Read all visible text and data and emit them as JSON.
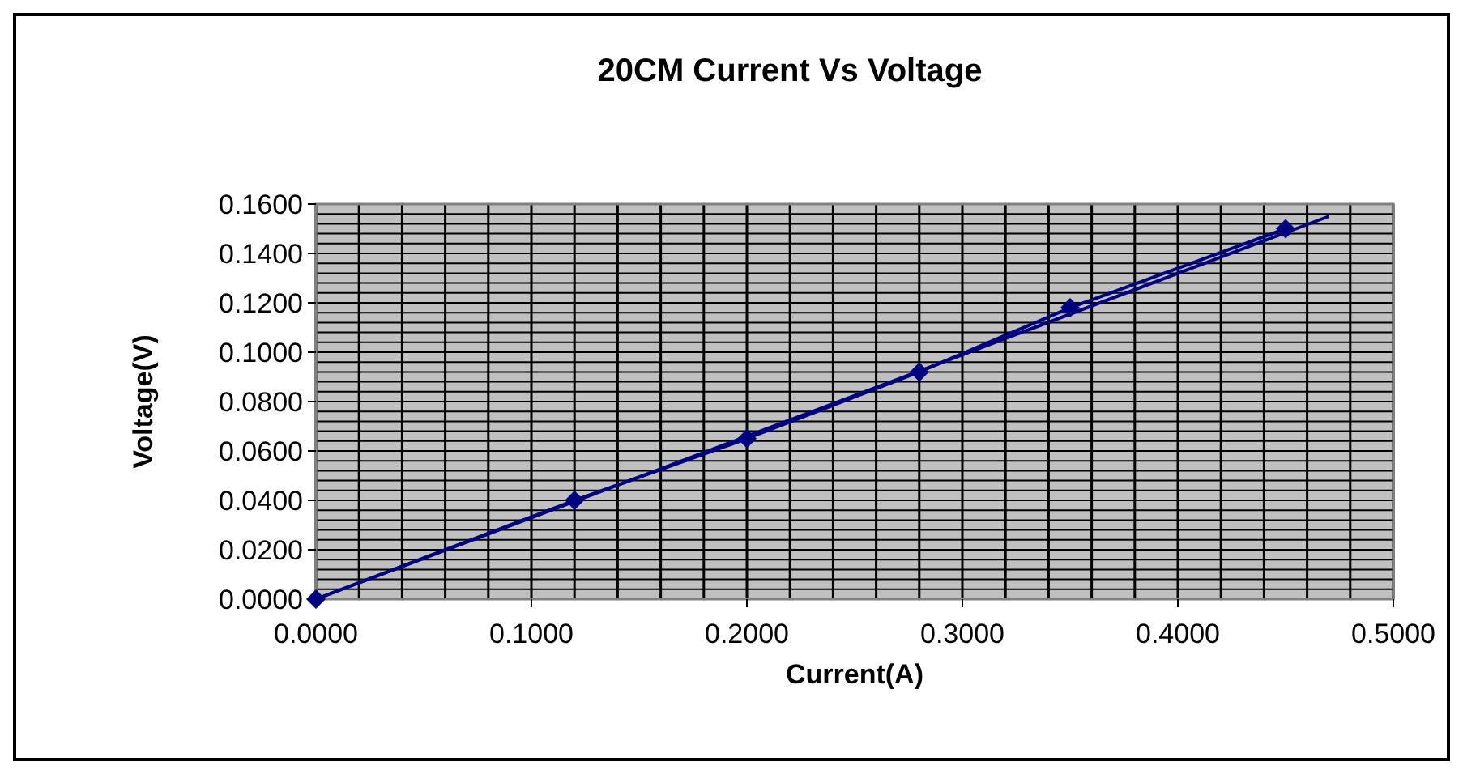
{
  "chart_data": {
    "type": "line",
    "title": "20CM Current Vs Voltage",
    "xlabel": "Current(A)",
    "ylabel": "Voltage(V)",
    "marker": "diamond",
    "grid": true,
    "xlim": [
      0,
      0.5
    ],
    "ylim": [
      0,
      0.16
    ],
    "xticks": [
      {
        "value": 0,
        "label": "0.0000"
      },
      {
        "value": 0.02,
        "label": null
      },
      {
        "value": 0.04,
        "label": null
      },
      {
        "value": 0.06,
        "label": null
      },
      {
        "value": 0.08,
        "label": null
      },
      {
        "value": 0.1,
        "label": "0.1000"
      },
      {
        "value": 0.12,
        "label": null
      },
      {
        "value": 0.14,
        "label": null
      },
      {
        "value": 0.16,
        "label": null
      },
      {
        "value": 0.18,
        "label": null
      },
      {
        "value": 0.2,
        "label": "0.2000"
      },
      {
        "value": 0.22,
        "label": null
      },
      {
        "value": 0.24,
        "label": null
      },
      {
        "value": 0.26,
        "label": null
      },
      {
        "value": 0.28,
        "label": null
      },
      {
        "value": 0.3,
        "label": "0.3000"
      },
      {
        "value": 0.32,
        "label": null
      },
      {
        "value": 0.34,
        "label": null
      },
      {
        "value": 0.36,
        "label": null
      },
      {
        "value": 0.38,
        "label": null
      },
      {
        "value": 0.4,
        "label": "0.4000"
      },
      {
        "value": 0.42,
        "label": null
      },
      {
        "value": 0.44,
        "label": null
      },
      {
        "value": 0.46,
        "label": null
      },
      {
        "value": 0.48,
        "label": null
      },
      {
        "value": 0.5,
        "label": "0.5000"
      }
    ],
    "yticks": [
      {
        "value": 0,
        "label": "0.0000"
      },
      {
        "value": 0.004,
        "label": null
      },
      {
        "value": 0.008,
        "label": null
      },
      {
        "value": 0.012,
        "label": null
      },
      {
        "value": 0.016,
        "label": null
      },
      {
        "value": 0.02,
        "label": "0.0200"
      },
      {
        "value": 0.024,
        "label": null
      },
      {
        "value": 0.028,
        "label": null
      },
      {
        "value": 0.032,
        "label": null
      },
      {
        "value": 0.036,
        "label": null
      },
      {
        "value": 0.04,
        "label": "0.0400"
      },
      {
        "value": 0.044,
        "label": null
      },
      {
        "value": 0.048,
        "label": null
      },
      {
        "value": 0.052,
        "label": null
      },
      {
        "value": 0.056,
        "label": null
      },
      {
        "value": 0.06,
        "label": "0.0600"
      },
      {
        "value": 0.064,
        "label": null
      },
      {
        "value": 0.068,
        "label": null
      },
      {
        "value": 0.072,
        "label": null
      },
      {
        "value": 0.076,
        "label": null
      },
      {
        "value": 0.08,
        "label": "0.0800"
      },
      {
        "value": 0.084,
        "label": null
      },
      {
        "value": 0.088,
        "label": null
      },
      {
        "value": 0.092,
        "label": null
      },
      {
        "value": 0.096,
        "label": null
      },
      {
        "value": 0.1,
        "label": "0.1000"
      },
      {
        "value": 0.104,
        "label": null
      },
      {
        "value": 0.108,
        "label": null
      },
      {
        "value": 0.112,
        "label": null
      },
      {
        "value": 0.116,
        "label": null
      },
      {
        "value": 0.12,
        "label": "0.1200"
      },
      {
        "value": 0.124,
        "label": null
      },
      {
        "value": 0.128,
        "label": null
      },
      {
        "value": 0.132,
        "label": null
      },
      {
        "value": 0.136,
        "label": null
      },
      {
        "value": 0.14,
        "label": "0.1400"
      },
      {
        "value": 0.144,
        "label": null
      },
      {
        "value": 0.148,
        "label": null
      },
      {
        "value": 0.152,
        "label": null
      },
      {
        "value": 0.156,
        "label": null
      },
      {
        "value": 0.16,
        "label": "0.1600"
      }
    ],
    "series": [
      {
        "color": "#000080",
        "x": [
          0,
          0.12,
          0.2,
          0.28,
          0.35,
          0.45
        ],
        "values": [
          0,
          0.04,
          0.065,
          0.092,
          0.118,
          0.15
        ]
      },
      {
        "type": "line",
        "marker": "none",
        "color": "#000080",
        "x": [
          0,
          0.47
        ],
        "values": [
          0,
          0.155
        ]
      }
    ]
  }
}
